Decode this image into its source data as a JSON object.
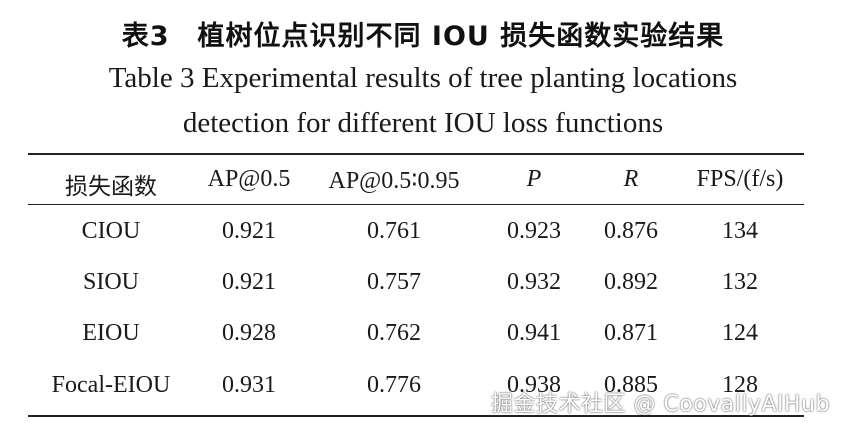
{
  "caption": {
    "title_cn": "表3　植树位点识别不同 IOU 损失函数实验结果",
    "title_en_line1": "Table 3  Experimental results of tree planting locations",
    "title_en_line2": "detection for different IOU loss functions"
  },
  "table": {
    "headers": [
      "损失函数",
      "AP@0.5",
      "AP@0.5∶0.95",
      "P",
      "R",
      "FPS/(f/s)"
    ],
    "rows": [
      [
        "CIOU",
        "0.921",
        "0.761",
        "0.923",
        "0.876",
        "134"
      ],
      [
        "SIOU",
        "0.921",
        "0.757",
        "0.932",
        "0.892",
        "132"
      ],
      [
        "EIOU",
        "0.928",
        "0.762",
        "0.941",
        "0.871",
        "124"
      ],
      [
        "Focal-EIOU",
        "0.931",
        "0.776",
        "0.938",
        "0.885",
        "128"
      ]
    ]
  },
  "watermark": "掘金技术社区 @ CoovallyAIHub"
}
